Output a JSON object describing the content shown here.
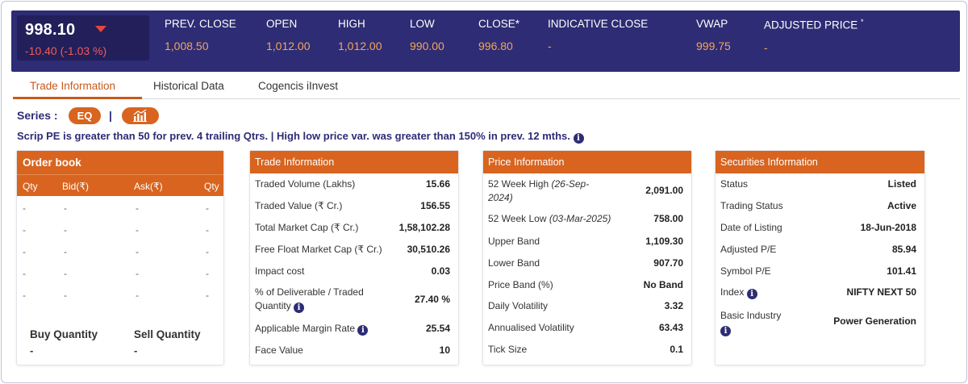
{
  "quote": {
    "last_price": "998.10",
    "change": "-10.40 (-1.03 %)",
    "stats": [
      {
        "label": "PREV. CLOSE",
        "value": "1,008.50"
      },
      {
        "label": "OPEN",
        "value": "1,012.00"
      },
      {
        "label": "HIGH",
        "value": "1,012.00"
      },
      {
        "label": "LOW",
        "value": "990.00"
      },
      {
        "label": "CLOSE*",
        "value": "996.80"
      },
      {
        "label": "INDICATIVE CLOSE",
        "value": "-"
      },
      {
        "label": "VWAP",
        "value": "999.75"
      },
      {
        "label": "ADJUSTED PRICE",
        "sup": "*",
        "value": "-"
      }
    ]
  },
  "tabs": [
    "Trade Information",
    "Historical Data",
    "Cogencis iInvest"
  ],
  "series": {
    "label": "Series :",
    "value": "EQ",
    "separator": "|"
  },
  "notice": "Scrip PE is greater than 50 for prev. 4 trailing Qtrs. | High low price var. was greater than 150% in prev. 12 mths.",
  "order_book": {
    "title": "Order book",
    "columns": [
      "Qty",
      "Bid(₹)",
      "Ask(₹)",
      "Qty"
    ],
    "rows": [
      [
        "-",
        "-",
        "-",
        "-"
      ],
      [
        "-",
        "-",
        "-",
        "-"
      ],
      [
        "-",
        "-",
        "-",
        "-"
      ],
      [
        "-",
        "-",
        "-",
        "-"
      ],
      [
        "-",
        "-",
        "-",
        "-"
      ]
    ],
    "buy_label": "Buy Quantity",
    "sell_label": "Sell Quantity",
    "buy_value": "-",
    "sell_value": "-"
  },
  "trade_info": {
    "title": "Trade Information",
    "rows": [
      {
        "label": "Traded Volume (Lakhs)",
        "value": "15.66"
      },
      {
        "label": "Traded Value (₹ Cr.)",
        "value": "156.55"
      },
      {
        "label": "Total Market Cap (₹ Cr.)",
        "value": "1,58,102.28"
      },
      {
        "label": "Free Float Market Cap (₹ Cr.)",
        "value": "30,510.26"
      },
      {
        "label": "Impact cost",
        "value": "0.03"
      },
      {
        "label": "% of Deliverable / Traded",
        "label2": "Quantity",
        "value": "27.40 %"
      },
      {
        "label": "Applicable Margin Rate",
        "value": "25.54"
      },
      {
        "label": "Face Value",
        "value": "10"
      }
    ]
  },
  "price_info": {
    "title": "Price Information",
    "rows": [
      {
        "label": "52 Week High",
        "date": "(26-Sep-",
        "date2": "2024)",
        "value": "2,091.00"
      },
      {
        "label": "52 Week Low",
        "date": "(03-Mar-2025)",
        "value": "758.00"
      },
      {
        "label": "Upper Band",
        "value": "1,109.30"
      },
      {
        "label": "Lower Band",
        "value": "907.70"
      },
      {
        "label": "Price Band (%)",
        "value": "No Band"
      },
      {
        "label": "Daily Volatility",
        "value": "3.32"
      },
      {
        "label": "Annualised Volatility",
        "value": "63.43"
      },
      {
        "label": "Tick Size",
        "value": "0.1"
      }
    ]
  },
  "securities_info": {
    "title": "Securities Information",
    "rows": [
      {
        "label": "Status",
        "value": "Listed"
      },
      {
        "label": "Trading Status",
        "value": "Active"
      },
      {
        "label": "Date of Listing",
        "value": "18-Jun-2018"
      },
      {
        "label": "Adjusted P/E",
        "value": "85.94"
      },
      {
        "label": "Symbol P/E",
        "value": "101.41"
      },
      {
        "label": "Index",
        "value": "NIFTY NEXT 50"
      },
      {
        "label": "Basic Industry",
        "value": "Power Generation"
      }
    ]
  },
  "colors": {
    "header_bg": "#2e2c74",
    "accent": "#d8641f",
    "price_down": "#f05a5a",
    "stat_value": "#f2a65a"
  },
  "icons": {
    "info": "info-circle-icon",
    "chart": "bar-chart-icon",
    "down": "down-triangle-icon"
  },
  "info_glyph": "i"
}
